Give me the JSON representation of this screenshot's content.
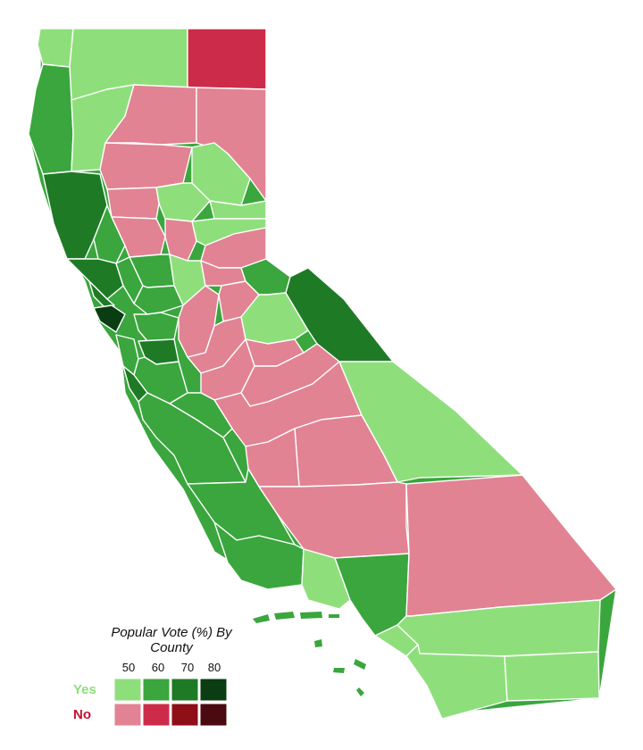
{
  "colors": {
    "yes_50": "#8edf7b",
    "yes_60": "#3aa63d",
    "yes_70": "#1f7a26",
    "yes_80": "#0a3d12",
    "no_50": "#e18393",
    "no_60": "#cc2c4a",
    "no_70": "#8e0f18",
    "no_80": "#4a0a0f",
    "yes_label": "#8edf7b",
    "no_label": "#c8102e"
  },
  "legend": {
    "title_line1": "Popular Vote (%) By",
    "title_line2": "County",
    "ticks": [
      "50",
      "60",
      "70",
      "80"
    ],
    "yes_label": "Yes",
    "no_label": "No"
  },
  "counties": [
    {
      "id": "del-norte",
      "shade": "yes_50"
    },
    {
      "id": "siskiyou",
      "shade": "yes_50"
    },
    {
      "id": "modoc",
      "shade": "no_60"
    },
    {
      "id": "humboldt",
      "shade": "yes_60"
    },
    {
      "id": "trinity",
      "shade": "yes_50"
    },
    {
      "id": "shasta",
      "shade": "no_50"
    },
    {
      "id": "lassen",
      "shade": "no_50"
    },
    {
      "id": "mendocino",
      "shade": "yes_70"
    },
    {
      "id": "tehama",
      "shade": "no_50"
    },
    {
      "id": "plumas",
      "shade": "yes_50"
    },
    {
      "id": "butte",
      "shade": "yes_50"
    },
    {
      "id": "glenn",
      "shade": "no_50"
    },
    {
      "id": "lake",
      "shade": "yes_60"
    },
    {
      "id": "colusa",
      "shade": "no_50"
    },
    {
      "id": "sierra",
      "shade": "yes_50"
    },
    {
      "id": "nevada",
      "shade": "yes_50"
    },
    {
      "id": "placer",
      "shade": "no_50"
    },
    {
      "id": "el-dorado",
      "shade": "no_50"
    },
    {
      "id": "sonoma",
      "shade": "yes_70"
    },
    {
      "id": "napa",
      "shade": "yes_60"
    },
    {
      "id": "yolo",
      "shade": "yes_60"
    },
    {
      "id": "sacramento",
      "shade": "yes_50"
    },
    {
      "id": "marin",
      "shade": "yes_70"
    },
    {
      "id": "san-francisco",
      "shade": "yes_80"
    },
    {
      "id": "solano",
      "shade": "yes_60"
    },
    {
      "id": "contra-costa",
      "shade": "yes_60"
    },
    {
      "id": "alameda",
      "shade": "yes_70"
    },
    {
      "id": "san-mateo",
      "shade": "yes_60"
    },
    {
      "id": "santa-clara",
      "shade": "yes_60"
    },
    {
      "id": "santa-cruz",
      "shade": "yes_70"
    },
    {
      "id": "san-joaquin",
      "shade": "no_50"
    },
    {
      "id": "amador",
      "shade": "no_50"
    },
    {
      "id": "calaveras",
      "shade": "no_50"
    },
    {
      "id": "alpine",
      "shade": "yes_60"
    },
    {
      "id": "tuolumne",
      "shade": "yes_50"
    },
    {
      "id": "mono",
      "shade": "yes_70"
    },
    {
      "id": "stanislaus",
      "shade": "no_50"
    },
    {
      "id": "mariposa",
      "shade": "no_50"
    },
    {
      "id": "merced",
      "shade": "no_50"
    },
    {
      "id": "madera",
      "shade": "no_50"
    },
    {
      "id": "fresno",
      "shade": "no_50"
    },
    {
      "id": "san-benito",
      "shade": "yes_60"
    },
    {
      "id": "monterey",
      "shade": "yes_60"
    },
    {
      "id": "inyo",
      "shade": "yes_50"
    },
    {
      "id": "tulare",
      "shade": "no_50"
    },
    {
      "id": "kings",
      "shade": "no_50"
    },
    {
      "id": "san-luis-obispo",
      "shade": "yes_60"
    },
    {
      "id": "kern",
      "shade": "no_50"
    },
    {
      "id": "santa-barbara",
      "shade": "yes_60"
    },
    {
      "id": "ventura",
      "shade": "yes_50"
    },
    {
      "id": "los-angeles",
      "shade": "yes_60"
    },
    {
      "id": "san-bernardino",
      "shade": "no_50"
    },
    {
      "id": "orange",
      "shade": "yes_50"
    },
    {
      "id": "riverside",
      "shade": "yes_50"
    },
    {
      "id": "san-diego",
      "shade": "yes_50"
    },
    {
      "id": "imperial",
      "shade": "yes_50"
    }
  ]
}
